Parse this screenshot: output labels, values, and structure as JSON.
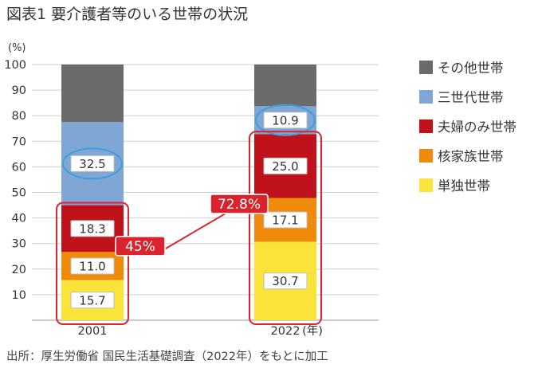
{
  "title": "図表1 要介護者等のいる世帯の状況",
  "source": "出所：厚生労働省 国民生活基礎調査（2022年）をもとに加工",
  "chart_data": {
    "type": "bar",
    "stacked": true,
    "ylabel": "(%)",
    "xlabel": "(年)",
    "ylim": [
      0,
      100
    ],
    "yticks": [
      10,
      20,
      30,
      40,
      50,
      60,
      70,
      80,
      90,
      100
    ],
    "grid": true,
    "legend_position": "right",
    "categories": [
      "2001",
      "2022"
    ],
    "series": [
      {
        "name": "単独世帯",
        "values": [
          15.7,
          30.7
        ],
        "color": "#fbe43a"
      },
      {
        "name": "核家族世帯",
        "values": [
          11.0,
          17.1
        ],
        "color": "#ef8a0b"
      },
      {
        "name": "夫婦のみ世帯",
        "values": [
          18.3,
          25.0
        ],
        "color": "#c0121a"
      },
      {
        "name": "三世代世帯",
        "values": [
          32.5,
          10.9
        ],
        "color": "#7fa6d4"
      },
      {
        "name": "その他世帯",
        "values": [
          22.5,
          16.3
        ],
        "color": "#6b6b6b"
      }
    ],
    "data_labels": [
      [
        "15.7",
        "30.7"
      ],
      [
        "11.0",
        "17.1"
      ],
      [
        "18.3",
        "25.0"
      ],
      [
        "32.5",
        "10.9"
      ],
      [
        "",
        ""
      ]
    ],
    "annotations": {
      "bracket_2001_label": "45%",
      "bracket_2022_label": "72.8%",
      "bracket_color": "#d9232d",
      "circle_color": "#3fa0d8"
    }
  }
}
